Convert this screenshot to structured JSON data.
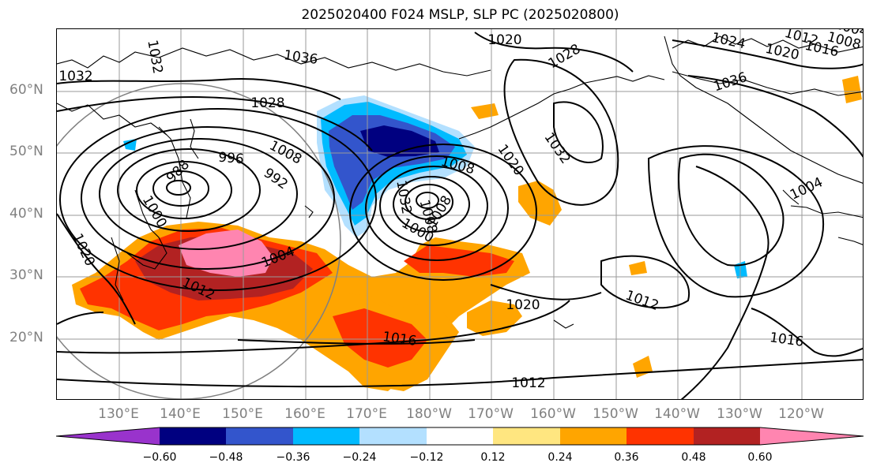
{
  "title": "2025020400 F024 MSLP, SLP PC (2025020800)",
  "latitude_labels": [
    "60°N",
    "50°N",
    "40°N",
    "30°N",
    "20°N"
  ],
  "longitude_labels": [
    "130°E",
    "140°E",
    "150°E",
    "160°E",
    "170°E",
    "180°W",
    "170°W",
    "160°W",
    "150°W",
    "140°W",
    "130°W",
    "120°W"
  ],
  "isobar_labels": [
    "1032",
    "1036",
    "1028",
    "1020",
    "1028",
    "1024",
    "1020",
    "1016",
    "1012",
    "1008",
    "1004",
    "1032",
    "1032",
    "1036",
    "1008",
    "996",
    "992",
    "988",
    "1000",
    "1020",
    "1004",
    "1012",
    "1008",
    "1020",
    "1008",
    "1000",
    "1032",
    "1008",
    "1004",
    "1020",
    "1012",
    "1016",
    "1016",
    "1012"
  ],
  "colorbar": {
    "ticks": [
      "−0.60",
      "−0.48",
      "−0.36",
      "−0.24",
      "−0.12",
      "0.12",
      "0.24",
      "0.36",
      "0.48",
      "0.60"
    ],
    "colors": [
      "#9933cc",
      "#000080",
      "#3355cc",
      "#00bbff",
      "#b3e0ff",
      "#ffffff",
      "#ffe680",
      "#ffa500",
      "#ff3300",
      "#b22222",
      "#ff85b0"
    ]
  },
  "fill_colors": {
    "pink": "#ff85b0",
    "darkred": "#b22222",
    "red": "#ff3300",
    "orange": "#ffa500",
    "yellow": "#ffe680",
    "lightblue": "#b3e0ff",
    "cyan": "#00bbff",
    "blue": "#3355cc",
    "navy": "#000080"
  }
}
